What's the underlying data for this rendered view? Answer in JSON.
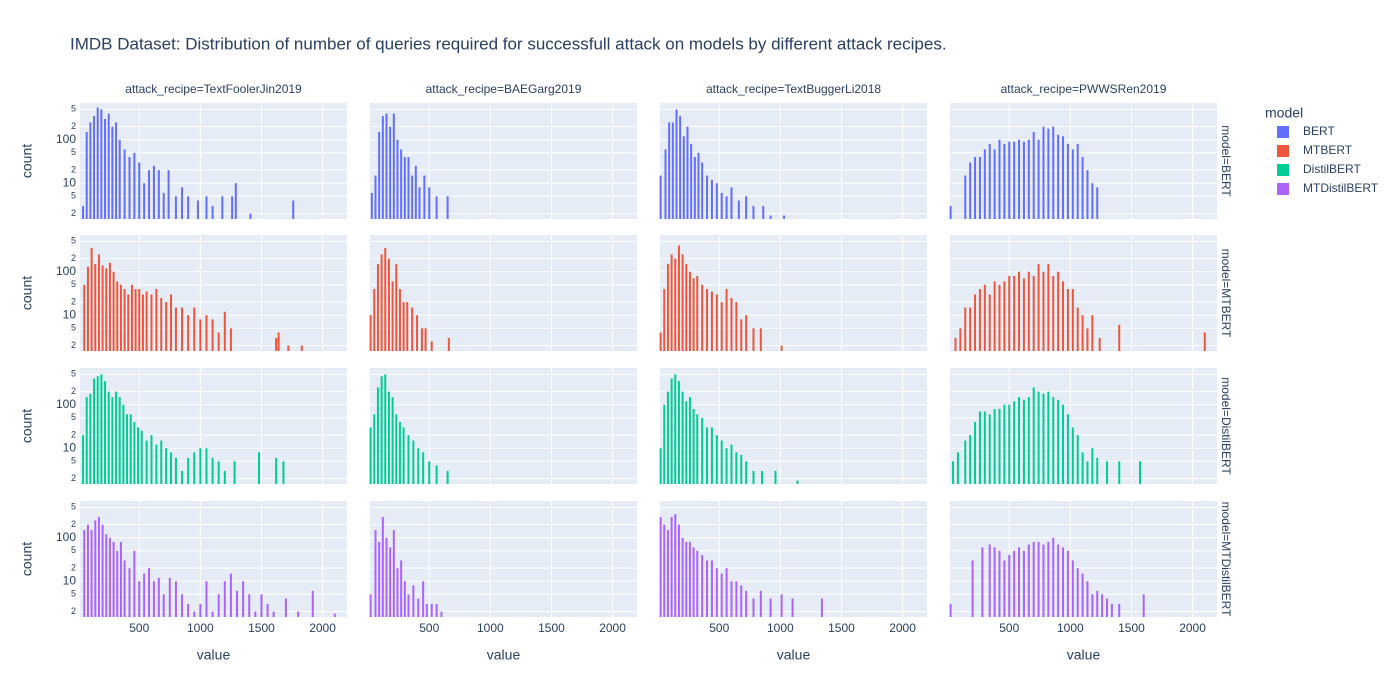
{
  "chart_data": {
    "type": "bar",
    "title": "IMDB Dataset: Distribution of number of queries required for successfull attack on models by different attack recipes.",
    "xlabel": "value",
    "ylabel": "count",
    "legend_title": "model",
    "log_y": true,
    "grid": true,
    "xlim": [
      15,
      2200
    ],
    "xticks": [
      500,
      1000,
      1500,
      2000
    ],
    "ylim": [
      1.5,
      700
    ],
    "yticks": [
      2,
      5,
      10,
      {
        "value": 20,
        "label": "2"
      },
      {
        "value": 50,
        "label": "5"
      },
      100,
      {
        "value": 200,
        "label": "2"
      },
      {
        "value": 500,
        "label": "5"
      }
    ],
    "columns": [
      "attack_recipe=TextFoolerJin2019",
      "attack_recipe=BAEGarg2019",
      "attack_recipe=TextBuggerLi2018",
      "attack_recipe=PWWSRen2019"
    ],
    "rows": [
      "model=BERT",
      "model=MTBERT",
      "model=DistilBERT",
      "model=MTDistilBERT"
    ],
    "series": [
      {
        "name": "BERT",
        "color": "#636efa",
        "panels": [
          {
            "x": [
              40,
              70,
              100,
              130,
              160,
              190,
              220,
              250,
              280,
              310,
              340,
              380,
              420,
              460,
              500,
              540,
              580,
              620,
              660,
              700,
              740,
              800,
              850,
              900,
              980,
              1050,
              1100,
              1180,
              1260,
              1290,
              1410,
              1760
            ],
            "values": [
              3,
              150,
              250,
              350,
              550,
              500,
              300,
              400,
              200,
              250,
              100,
              60,
              40,
              50,
              30,
              10,
              20,
              25,
              20,
              6,
              20,
              5,
              8,
              5,
              4,
              5,
              3,
              5,
              5,
              10,
              2,
              4
            ]
          },
          {
            "x": [
              30,
              60,
              90,
              120,
              150,
              180,
              210,
              240,
              270,
              300,
              330,
              360,
              390,
              420,
              460,
              500,
              560,
              650
            ],
            "values": [
              6,
              15,
              150,
              350,
              400,
              200,
              400,
              100,
              60,
              40,
              40,
              15,
              25,
              8,
              15,
              8,
              5,
              5
            ]
          },
          {
            "x": [
              20,
              60,
              90,
              120,
              150,
              180,
              210,
              240,
              270,
              300,
              330,
              360,
              400,
              440,
              480,
              520,
              560,
              600,
              660,
              720,
              780,
              860,
              920,
              1030
            ],
            "values": [
              15,
              60,
              250,
              250,
              500,
              350,
              120,
              200,
              80,
              40,
              50,
              30,
              15,
              12,
              10,
              6,
              5,
              8,
              4,
              5,
              3,
              3,
              1.8,
              1.8
            ]
          },
          {
            "x": [
              20,
              140,
              180,
              220,
              260,
              300,
              340,
              380,
              420,
              460,
              500,
              540,
              580,
              620,
              660,
              700,
              740,
              780,
              820,
              860,
              900,
              940,
              980,
              1020,
              1060,
              1100,
              1140,
              1180,
              1220
            ],
            "values": [
              3,
              15,
              30,
              40,
              40,
              60,
              80,
              60,
              100,
              80,
              90,
              90,
              100,
              90,
              100,
              150,
              100,
              200,
              180,
              200,
              130,
              120,
              80,
              60,
              80,
              40,
              20,
              10,
              8
            ]
          }
        ]
      },
      {
        "name": "MTBERT",
        "color": "#ef553b",
        "panels": [
          {
            "x": [
              50,
              80,
              110,
              140,
              170,
              200,
              230,
              260,
              290,
              320,
              350,
              380,
              410,
              440,
              470,
              500,
              530,
              560,
              600,
              640,
              680,
              720,
              760,
              800,
              850,
              900,
              950,
              1000,
              1050,
              1100,
              1150,
              1200,
              1250,
              1620,
              1640,
              1720,
              1830
            ],
            "values": [
              50,
              130,
              350,
              150,
              250,
              140,
              120,
              160,
              100,
              60,
              50,
              40,
              30,
              50,
              40,
              40,
              30,
              35,
              30,
              40,
              25,
              20,
              30,
              15,
              15,
              10,
              15,
              8,
              10,
              8,
              4,
              12,
              5,
              3,
              4,
              2,
              2
            ]
          },
          {
            "x": [
              20,
              50,
              80,
              110,
              140,
              170,
              200,
              230,
              260,
              290,
              320,
              360,
              400,
              440,
              470,
              520,
              660
            ],
            "values": [
              10,
              40,
              150,
              250,
              350,
              200,
              60,
              150,
              40,
              20,
              20,
              15,
              10,
              5,
              5,
              2.5,
              3
            ]
          },
          {
            "x": [
              20,
              50,
              80,
              110,
              140,
              170,
              200,
              230,
              260,
              290,
              320,
              360,
              400,
              440,
              480,
              520,
              560,
              600,
              640,
              680,
              720,
              780,
              840,
              1010
            ],
            "values": [
              4,
              40,
              150,
              250,
              200,
              400,
              250,
              150,
              100,
              70,
              80,
              50,
              40,
              35,
              30,
              20,
              40,
              25,
              20,
              8,
              10,
              5,
              5,
              2
            ]
          },
          {
            "x": [
              60,
              100,
              140,
              180,
              220,
              260,
              300,
              340,
              380,
              420,
              460,
              500,
              540,
              580,
              620,
              660,
              700,
              740,
              780,
              820,
              860,
              900,
              940,
              980,
              1020,
              1060,
              1100,
              1140,
              1180,
              1240,
              1400,
              2100
            ],
            "values": [
              3,
              5,
              15,
              15,
              30,
              40,
              50,
              30,
              60,
              50,
              60,
              80,
              80,
              100,
              70,
              100,
              80,
              150,
              100,
              150,
              80,
              100,
              60,
              40,
              40,
              15,
              10,
              5,
              10,
              3,
              6,
              4
            ]
          }
        ]
      },
      {
        "name": "DistilBERT",
        "color": "#00cc96",
        "panels": [
          {
            "x": [
              40,
              70,
              100,
              130,
              160,
              190,
              220,
              250,
              280,
              310,
              340,
              370,
              400,
              430,
              460,
              490,
              520,
              560,
              600,
              640,
              680,
              720,
              760,
              800,
              850,
              900,
              950,
              1000,
              1050,
              1100,
              1150,
              1200,
              1280,
              1480,
              1620,
              1680
            ],
            "values": [
              20,
              150,
              180,
              400,
              450,
              500,
              350,
              200,
              150,
              200,
              150,
              100,
              60,
              60,
              40,
              30,
              25,
              15,
              20,
              12,
              15,
              10,
              8,
              6,
              3,
              6,
              8,
              10,
              10,
              6,
              5,
              3,
              5,
              8,
              6,
              5
            ]
          },
          {
            "x": [
              20,
              50,
              80,
              110,
              140,
              170,
              200,
              230,
              260,
              290,
              330,
              370,
              410,
              450,
              500,
              560,
              650
            ],
            "values": [
              30,
              60,
              250,
              450,
              500,
              200,
              150,
              60,
              40,
              30,
              20,
              15,
              10,
              8,
              5,
              4,
              3
            ]
          },
          {
            "x": [
              20,
              50,
              80,
              110,
              140,
              170,
              200,
              230,
              260,
              290,
              320,
              360,
              400,
              440,
              480,
              520,
              560,
              600,
              640,
              680,
              720,
              780,
              850,
              960,
              1140
            ],
            "values": [
              10,
              100,
              200,
              400,
              500,
              350,
              200,
              120,
              150,
              80,
              60,
              50,
              30,
              30,
              20,
              15,
              10,
              12,
              8,
              7,
              5,
              3,
              3,
              3,
              1.8
            ]
          },
          {
            "x": [
              40,
              80,
              140,
              180,
              220,
              260,
              300,
              340,
              380,
              420,
              460,
              500,
              540,
              580,
              620,
              660,
              700,
              740,
              780,
              820,
              860,
              900,
              940,
              980,
              1020,
              1060,
              1100,
              1140,
              1180,
              1220,
              1300,
              1400,
              1570
            ],
            "values": [
              5,
              8,
              15,
              20,
              40,
              70,
              70,
              60,
              80,
              80,
              100,
              100,
              120,
              150,
              130,
              150,
              250,
              200,
              180,
              200,
              150,
              130,
              100,
              60,
              30,
              20,
              8,
              5,
              10,
              6,
              5,
              5,
              5
            ]
          }
        ]
      },
      {
        "name": "MTDistilBERT",
        "color": "#ab63fa",
        "panels": [
          {
            "x": [
              50,
              80,
              110,
              140,
              170,
              200,
              230,
              260,
              290,
              320,
              350,
              380,
              420,
              460,
              500,
              540,
              580,
              620,
              660,
              700,
              750,
              800,
              850,
              900,
              950,
              1000,
              1050,
              1100,
              1150,
              1200,
              1250,
              1300,
              1350,
              1400,
              1450,
              1500,
              1550,
              1600,
              1700,
              1800,
              1920,
              2100
            ],
            "values": [
              150,
              200,
              150,
              250,
              300,
              200,
              120,
              100,
              80,
              50,
              80,
              30,
              20,
              50,
              10,
              15,
              20,
              10,
              12,
              5,
              12,
              10,
              5,
              3,
              2,
              3,
              10,
              2,
              5,
              10,
              15,
              6,
              10,
              5,
              2,
              5,
              3,
              2,
              4,
              2,
              6,
              1.8
            ]
          },
          {
            "x": [
              20,
              60,
              90,
              120,
              150,
              180,
              210,
              240,
              270,
              300,
              330,
              370,
              410,
              450,
              480,
              520,
              560,
              600
            ],
            "values": [
              5,
              150,
              80,
              300,
              100,
              60,
              150,
              20,
              30,
              10,
              5,
              8,
              4,
              10,
              3,
              3,
              3,
              2
            ]
          },
          {
            "x": [
              20,
              50,
              80,
              110,
              140,
              170,
              200,
              230,
              260,
              290,
              320,
              360,
              400,
              440,
              480,
              520,
              560,
              600,
              640,
              680,
              720,
              780,
              840,
              920,
              1010,
              1100,
              1340
            ],
            "values": [
              300,
              200,
              150,
              300,
              350,
              200,
              100,
              80,
              80,
              60,
              50,
              40,
              30,
              30,
              20,
              15,
              20,
              10,
              10,
              8,
              6,
              4,
              6,
              4,
              5,
              4,
              4
            ]
          },
          {
            "x": [
              20,
              200,
              280,
              340,
              380,
              420,
              460,
              500,
              540,
              580,
              620,
              660,
              700,
              740,
              780,
              820,
              860,
              900,
              940,
              980,
              1020,
              1060,
              1100,
              1140,
              1180,
              1220,
              1260,
              1300,
              1340,
              1400,
              1600
            ],
            "values": [
              3,
              30,
              60,
              70,
              60,
              50,
              30,
              40,
              50,
              60,
              50,
              70,
              80,
              80,
              70,
              80,
              100,
              70,
              60,
              50,
              30,
              20,
              15,
              10,
              5,
              6,
              5,
              4,
              3,
              3,
              5
            ]
          }
        ]
      }
    ]
  }
}
